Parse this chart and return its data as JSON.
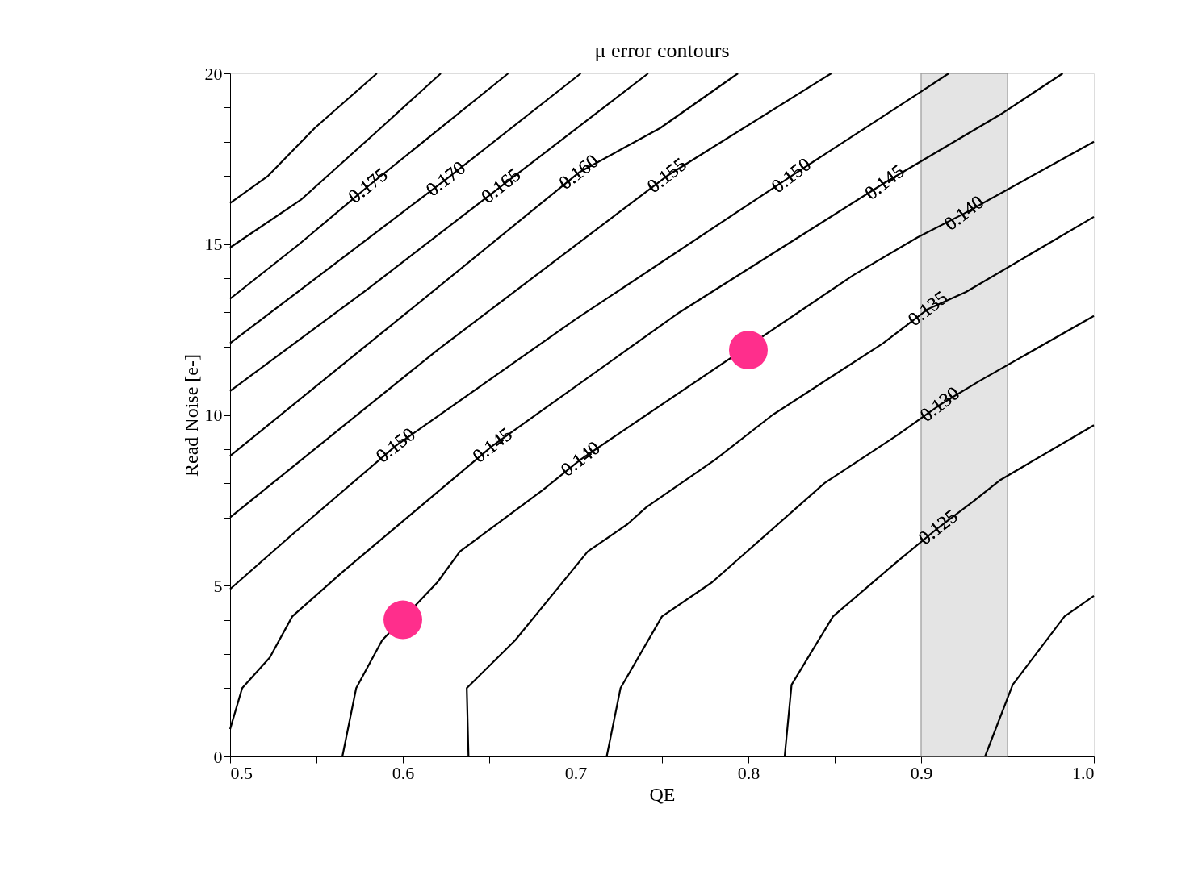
{
  "chart_data": {
    "type": "line",
    "title": "μ error contours",
    "xlabel": "QE",
    "ylabel": "Read Noise [e-]",
    "xlim": [
      0.5,
      1.0
    ],
    "ylim": [
      0,
      20
    ],
    "xticks": [
      0.5,
      {
        "value": 0.55,
        "label": null
      },
      0.6,
      {
        "value": 0.65,
        "label": null
      },
      0.7,
      {
        "value": 0.75,
        "label": null
      },
      0.8,
      {
        "value": 0.85,
        "label": null
      },
      0.9,
      {
        "value": 0.95,
        "label": null
      },
      {
        "value": 1.0,
        "label": "1.0"
      }
    ],
    "yticks": [
      0,
      {
        "value": 1,
        "label": null
      },
      {
        "value": 2,
        "label": null
      },
      {
        "value": 3,
        "label": null
      },
      {
        "value": 4,
        "label": null
      },
      5,
      {
        "value": 6,
        "label": null
      },
      {
        "value": 7,
        "label": null
      },
      {
        "value": 8,
        "label": null
      },
      {
        "value": 9,
        "label": null
      },
      10,
      {
        "value": 11,
        "label": null
      },
      {
        "value": 12,
        "label": null
      },
      {
        "value": 13,
        "label": null
      },
      {
        "value": 14,
        "label": null
      },
      15,
      {
        "value": 16,
        "label": null
      },
      {
        "value": 17,
        "label": null
      },
      {
        "value": 18,
        "label": null
      },
      {
        "value": 19,
        "label": null
      },
      20
    ],
    "grid": false,
    "line_style": "solid",
    "series": [
      {
        "color": "#000000",
        "x": [
          0.5,
          0.522,
          0.549,
          0.585
        ],
        "values": [
          16.2,
          17.0,
          18.4,
          20
        ]
      },
      {
        "color": "#000000",
        "x": [
          0.5,
          0.541,
          0.585,
          0.622
        ],
        "values": [
          14.9,
          16.3,
          18.3,
          20
        ]
      },
      {
        "color": "#000000",
        "x": [
          0.5,
          0.54,
          0.58,
          0.661
        ],
        "values": [
          13.4,
          15.0,
          16.7,
          20
        ]
      },
      {
        "color": "#000000",
        "x": [
          0.5,
          0.56,
          0.625,
          0.703
        ],
        "values": [
          12.1,
          14.4,
          16.9,
          20
        ]
      },
      {
        "color": "#000000",
        "x": [
          0.5,
          0.58,
          0.657,
          0.742
        ],
        "values": [
          10.7,
          13.7,
          16.7,
          20
        ]
      },
      {
        "color": "#000000",
        "x": [
          0.5,
          0.6,
          0.702,
          0.749,
          0.794
        ],
        "values": [
          8.8,
          12.9,
          17.1,
          18.4,
          20
        ]
      },
      {
        "color": "#000000",
        "x": [
          0.5,
          0.62,
          0.753,
          0.848
        ],
        "values": [
          7.0,
          11.9,
          17.0,
          20
        ]
      },
      {
        "color": "#000000",
        "x": [
          0.5,
          0.536,
          0.596,
          0.7,
          0.825,
          0.898,
          0.916
        ],
        "values": [
          4.9,
          6.5,
          9.1,
          12.8,
          17.0,
          19.4,
          20
        ]
      },
      {
        "color": "#000000",
        "x": [
          0.5,
          0.507,
          0.523,
          0.536,
          0.565,
          0.652,
          0.76,
          0.879,
          0.946,
          0.982
        ],
        "values": [
          0.8,
          2.0,
          2.9,
          4.1,
          5.4,
          9.1,
          13.0,
          16.8,
          18.8,
          20
        ]
      },
      {
        "color": "#000000",
        "x": [
          0.565,
          0.573,
          0.588,
          0.62,
          0.633,
          0.681,
          0.703,
          0.741,
          0.861,
          0.898,
          0.925,
          1.0
        ],
        "values": [
          0,
          2.0,
          3.4,
          5.1,
          6.0,
          7.8,
          8.7,
          10.0,
          14.1,
          15.2,
          15.9,
          18.0
        ]
      },
      {
        "color": "#000000",
        "x": [
          0.638,
          0.637,
          0.665,
          0.707,
          0.73,
          0.741,
          0.781,
          0.814,
          0.878,
          0.904,
          0.926,
          1.0
        ],
        "values": [
          0,
          2.0,
          3.4,
          6.0,
          6.8,
          7.3,
          8.7,
          10.0,
          12.1,
          13.1,
          13.6,
          15.8
        ]
      },
      {
        "color": "#000000",
        "x": [
          0.718,
          0.726,
          0.75,
          0.779,
          0.844,
          0.886,
          0.911,
          0.934,
          1.0
        ],
        "values": [
          0,
          2.0,
          4.1,
          5.1,
          8.0,
          9.4,
          10.3,
          11.0,
          12.9
        ]
      },
      {
        "color": "#000000",
        "x": [
          0.821,
          0.825,
          0.849,
          0.886,
          0.91,
          0.931,
          0.946,
          1.0
        ],
        "values": [
          0,
          2.1,
          4.1,
          5.7,
          6.7,
          7.5,
          8.1,
          9.7
        ]
      },
      {
        "color": "#000000",
        "x": [
          0.937,
          0.953,
          0.983,
          1.0
        ],
        "values": [
          0,
          2.1,
          4.1,
          4.7
        ]
      },
      {
        "type": "scatter",
        "marker": "circle",
        "color": "#ff2e8c",
        "x": [
          0.6,
          0.8
        ],
        "values": [
          4.0,
          11.9
        ]
      }
    ],
    "bands": [
      {
        "axis": "x",
        "from": 0.9,
        "to": 0.95,
        "color": "#d9d9d9"
      }
    ],
    "annotations": [
      {
        "text": "0.175",
        "x": 0.58,
        "y": 16.7
      },
      {
        "text": "0.170",
        "x": 0.625,
        "y": 16.9
      },
      {
        "text": "0.165",
        "x": 0.657,
        "y": 16.7
      },
      {
        "text": "0.160",
        "x": 0.702,
        "y": 17.1
      },
      {
        "text": "0.155",
        "x": 0.753,
        "y": 17.0
      },
      {
        "text": "0.150",
        "x": 0.825,
        "y": 17.0
      },
      {
        "text": "0.145",
        "x": 0.879,
        "y": 16.8
      },
      {
        "text": "0.140",
        "x": 0.925,
        "y": 15.9
      },
      {
        "text": "0.150",
        "x": 0.596,
        "y": 9.1
      },
      {
        "text": "0.145",
        "x": 0.652,
        "y": 9.1
      },
      {
        "text": "0.140",
        "x": 0.703,
        "y": 8.7
      },
      {
        "text": "0.135",
        "x": 0.904,
        "y": 13.1
      },
      {
        "text": "0.130",
        "x": 0.911,
        "y": 10.3
      },
      {
        "text": "0.125",
        "x": 0.91,
        "y": 6.7
      }
    ]
  }
}
